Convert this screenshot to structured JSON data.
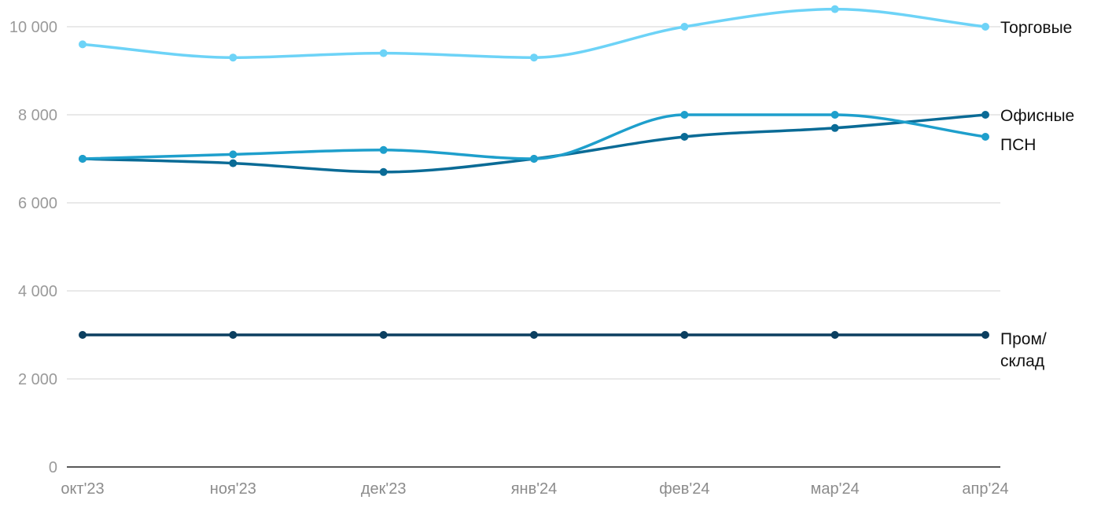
{
  "chart_data": {
    "type": "line",
    "title": "",
    "xlabel": "",
    "ylabel": "",
    "categories": [
      "окт'23",
      "ноя'23",
      "дек'23",
      "янв'24",
      "фев'24",
      "мар'24",
      "апр'24"
    ],
    "ylim": [
      0,
      10000
    ],
    "yticks": [
      0,
      2000,
      4000,
      6000,
      8000,
      10000
    ],
    "ytick_labels": [
      "0",
      "2 000",
      "4 000",
      "6 000",
      "8 000",
      "10 000"
    ],
    "grid": true,
    "legend": "none; series labeled at right end of lines",
    "series": [
      {
        "name": "Торговые",
        "color": "#6dd3f7",
        "values": [
          9600,
          9300,
          9400,
          9300,
          10000,
          10400,
          10000
        ]
      },
      {
        "name": "Офисные",
        "color": "#0a6b96",
        "values": [
          7000,
          6900,
          6700,
          7000,
          7500,
          7700,
          8000
        ]
      },
      {
        "name": "ПСН",
        "color": "#1e9fcc",
        "values": [
          7000,
          7100,
          7200,
          7000,
          8000,
          8000,
          7500
        ]
      },
      {
        "name": "Пром/склад",
        "label_lines": [
          "Пром/",
          "склад"
        ],
        "color": "#0b3f60",
        "values": [
          3000,
          3000,
          3000,
          3000,
          3000,
          3000,
          3000
        ]
      }
    ]
  }
}
